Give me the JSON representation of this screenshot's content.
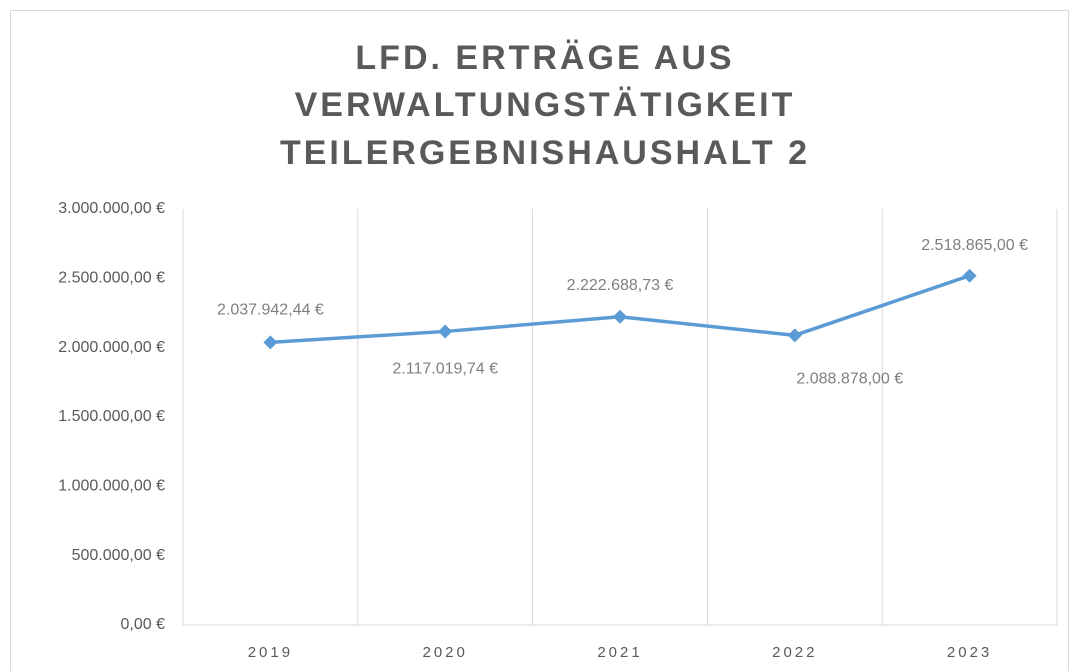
{
  "chart_data": {
    "type": "line",
    "title": [
      "LFD. ERTRÄGE AUS",
      "VERWALTUNGSTÄTIGKEIT",
      "TEILERGEBNISHAUSHALT 2"
    ],
    "categories": [
      "2019",
      "2020",
      "2021",
      "2022",
      "2023"
    ],
    "series": [
      {
        "name": "Lfd. Erträge aus Verwaltungstätigkeit",
        "color": "#5b9bd5",
        "values": [
          2037942.44,
          2117019.74,
          2222688.73,
          2088878.0,
          2518865.0
        ],
        "value_labels": [
          "2.037.942,44 €",
          "2.117.019,74 €",
          "2.222.688,73 €",
          "2.088.878,00 €",
          "2.518.865,00 €"
        ]
      }
    ],
    "ylim": [
      0,
      3000000
    ],
    "yticks": [
      {
        "value": 0,
        "label": "0,00 €"
      },
      {
        "value": 500000,
        "label": "500.000,00 €"
      },
      {
        "value": 1000000,
        "label": "1.000.000,00 €"
      },
      {
        "value": 1500000,
        "label": "1.500.000,00 €"
      },
      {
        "value": 2000000,
        "label": "2.000.000,00 €"
      },
      {
        "value": 2500000,
        "label": "2.500.000,00 €"
      },
      {
        "value": 3000000,
        "label": "3.000.000,00 €"
      }
    ],
    "grid": false
  }
}
